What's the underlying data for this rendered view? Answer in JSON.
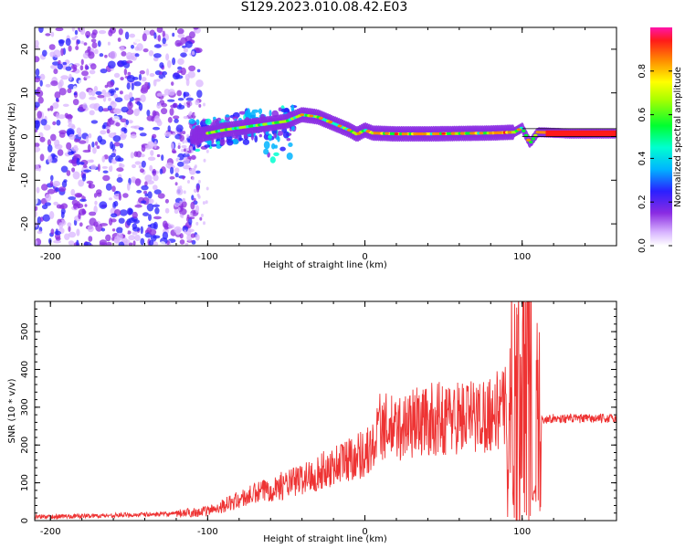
{
  "figure_title": "S129.2023.010.08.42.E03",
  "colors": {
    "scatter": "#8a2be2",
    "signal_band": "#22b8ff",
    "snr_line": "#ee3333",
    "frame": "#000000"
  },
  "chart_data": [
    {
      "type": "heatmap",
      "title": "S129.2023.010.08.42.E03",
      "xlabel": "Height of straight line (km)",
      "ylabel": "Frequency (Hz)",
      "xlim": [
        -210,
        160
      ],
      "ylim": [
        -25,
        25
      ],
      "x_ticks": [
        -200,
        -100,
        0,
        100
      ],
      "y_ticks": [
        -20,
        -10,
        0,
        10,
        20
      ],
      "colorbar": {
        "label": "Normalized spectral amplitude",
        "range": [
          0,
          1
        ],
        "ticks": [
          0.0,
          0.2,
          0.4,
          0.6,
          0.8
        ],
        "colormap": "rainbow (white-violet-blue-cyan-green-yellow-orange-red-magenta)"
      },
      "regions": [
        {
          "name": "noise",
          "x_range": [
            -210,
            -105
          ],
          "freq_range": [
            -25,
            25
          ],
          "amplitude": [
            0.05,
            0.3
          ]
        },
        {
          "name": "transition",
          "x_range": [
            -110,
            -45
          ],
          "freq_range": [
            -13,
            8
          ],
          "amplitude": [
            0.1,
            0.5
          ]
        },
        {
          "name": "signal",
          "x_range": [
            -45,
            160
          ],
          "amplitude": [
            0.4,
            1.0
          ]
        }
      ],
      "signal_center": {
        "x": [
          -110,
          -90,
          -70,
          -50,
          -40,
          -30,
          -20,
          -10,
          -5,
          0,
          5,
          20,
          40,
          60,
          80,
          95,
          100,
          105,
          110,
          130,
          160
        ],
        "freq": [
          0,
          1.5,
          2.5,
          3.5,
          5.0,
          4.5,
          3.0,
          1.5,
          0.5,
          1.5,
          0.8,
          0.6,
          0.6,
          0.7,
          0.8,
          1.0,
          2.0,
          -1.5,
          1.0,
          0.7,
          0.7
        ]
      }
    },
    {
      "type": "line",
      "xlabel": "Height of straight line (km)",
      "ylabel": "SNR (10 * v/v)",
      "xlim": [
        -210,
        160
      ],
      "ylim": [
        0,
        580
      ],
      "x_ticks": [
        -200,
        -100,
        0,
        100
      ],
      "y_ticks": [
        0,
        100,
        200,
        300,
        400,
        500
      ],
      "series": [
        {
          "x": [
            -210,
            -180,
            -150,
            -120,
            -100,
            -90,
            -80,
            -70,
            -60,
            -50,
            -40,
            -30,
            -20,
            -10,
            0,
            5,
            10,
            20,
            30,
            40,
            50,
            60,
            70,
            80,
            90,
            95,
            100,
            105,
            108,
            110,
            115,
            130,
            160
          ],
          "y": [
            10,
            12,
            15,
            18,
            25,
            40,
            55,
            70,
            85,
            95,
            110,
            125,
            145,
            165,
            180,
            190,
            250,
            240,
            260,
            265,
            270,
            275,
            275,
            285,
            300,
            320,
            300,
            400,
            250,
            260,
            270,
            270,
            270
          ]
        }
      ]
    }
  ]
}
